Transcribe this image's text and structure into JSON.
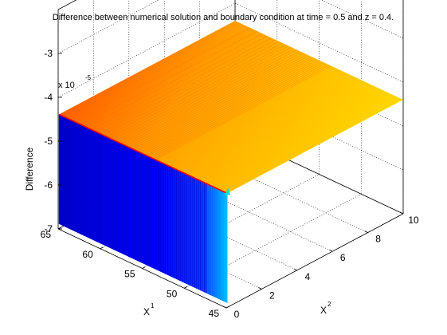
{
  "figure": {
    "title": "Difference between numerical solution and boundary condition at time = 0.5 and z = 0.4."
  },
  "chart_data": {
    "type": "surface",
    "title": "Difference between numerical solution and boundary condition at time = 0.5 and z = 0.4.",
    "xlabel": "X",
    "xlabel_superscript": "1",
    "ylabel": "X",
    "ylabel_superscript": "2",
    "zlabel": "Difference",
    "z_multiplier": "x 10",
    "z_exponent": "-5",
    "xlim": [
      45,
      65
    ],
    "ylim": [
      0,
      10
    ],
    "zlim": [
      -7,
      -2
    ],
    "x_ticks": [
      "45",
      "50",
      "55",
      "60",
      "65"
    ],
    "y_ticks": [
      "0",
      "2",
      "4",
      "6",
      "8",
      "10"
    ],
    "z_ticks": [
      "-7",
      "-6",
      "-5",
      "-4",
      "-3"
    ],
    "grid": true,
    "colormap": [
      "#00008f",
      "#0000ff",
      "#00ffff",
      "#ffff00",
      "#ff0000",
      "#800000"
    ],
    "surface_description_values": {
      "plateau_value": -4.4,
      "edge_value_x1_min": -4.4,
      "wall_bottom_value": -6.9,
      "wall_position_x2": 0
    },
    "series": [
      {
        "name": "",
        "x2": [
          0,
          0.5,
          1,
          2,
          4,
          6,
          8,
          10
        ],
        "values_at_x1_65": [
          -6.9,
          -4.8,
          -4.5,
          -4.4,
          -4.4,
          -4.4,
          -4.4,
          -4.4
        ]
      }
    ]
  }
}
